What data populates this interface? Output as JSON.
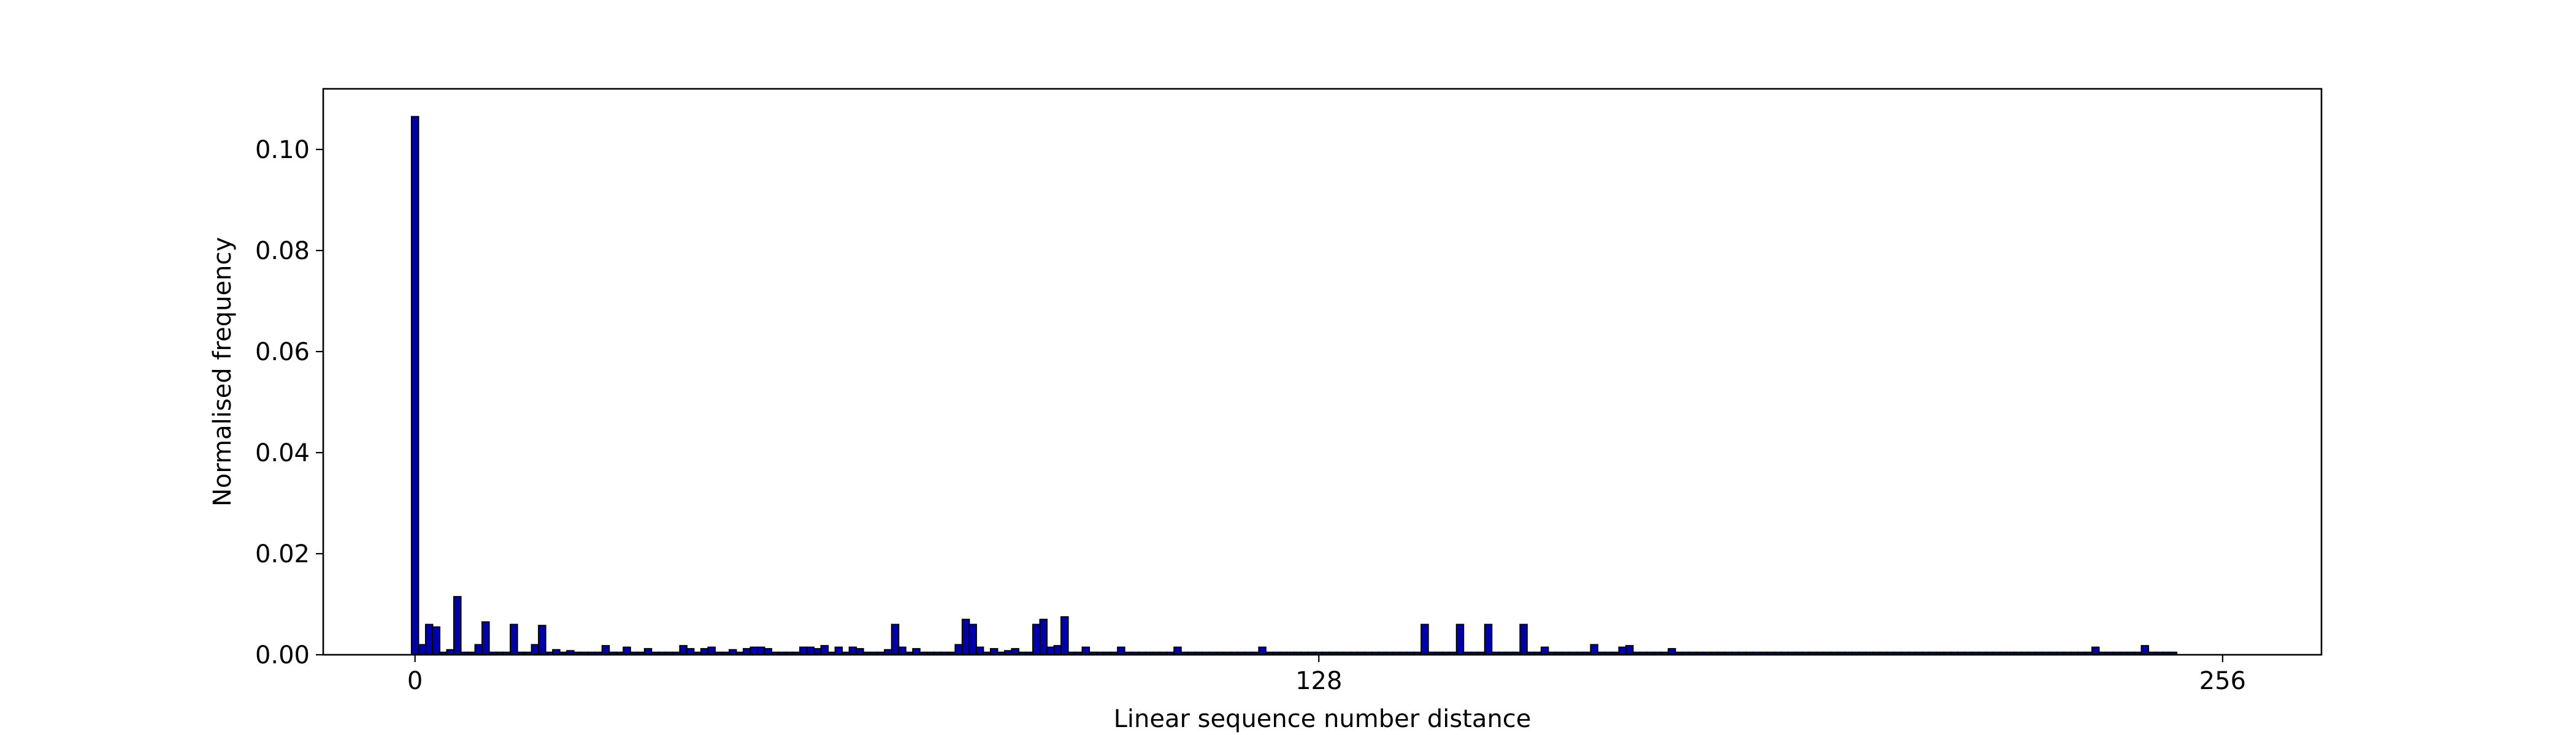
{
  "chart_data": {
    "type": "bar",
    "title": "",
    "xlabel": "Linear sequence number distance",
    "ylabel": "Normalised frequency",
    "xlim": [
      -13,
      270
    ],
    "ylim": [
      0,
      0.112
    ],
    "xticks": [
      0,
      128,
      256
    ],
    "xtick_labels": [
      "0",
      "128",
      "256"
    ],
    "yticks": [
      0,
      0.02,
      0.04,
      0.06,
      0.08,
      0.1
    ],
    "ytick_labels": [
      "0.00",
      "0.02",
      "0.04",
      "0.06",
      "0.08",
      "0.10"
    ],
    "grid": false,
    "bar_width": 1,
    "bar_color": "#0000aa",
    "edge_color": "#000000",
    "x": [
      0,
      1,
      2,
      3,
      5,
      6,
      9,
      10,
      14,
      17,
      18,
      20,
      22,
      27,
      30,
      33,
      38,
      39,
      41,
      42,
      45,
      47,
      48,
      49,
      50,
      55,
      56,
      57,
      58,
      60,
      62,
      63,
      67,
      68,
      69,
      71,
      77,
      78,
      79,
      80,
      82,
      84,
      85,
      88,
      89,
      90,
      91,
      92,
      95,
      100,
      108,
      120,
      143,
      148,
      152,
      157,
      160,
      167,
      171,
      172,
      178,
      238,
      245
    ],
    "values": [
      0.1065,
      0.002,
      0.006,
      0.0055,
      0.001,
      0.0115,
      0.002,
      0.0065,
      0.006,
      0.002,
      0.0058,
      0.001,
      0.0008,
      0.0018,
      0.0015,
      0.0012,
      0.0018,
      0.0012,
      0.0012,
      0.0015,
      0.001,
      0.0012,
      0.0015,
      0.0015,
      0.0012,
      0.0015,
      0.0015,
      0.0012,
      0.0018,
      0.0015,
      0.0015,
      0.0012,
      0.001,
      0.006,
      0.0015,
      0.0012,
      0.002,
      0.007,
      0.006,
      0.0015,
      0.0012,
      0.0008,
      0.0012,
      0.006,
      0.007,
      0.0015,
      0.0018,
      0.0075,
      0.0015,
      0.0015,
      0.0015,
      0.0015,
      0.006,
      0.006,
      0.006,
      0.006,
      0.0015,
      0.002,
      0.0015,
      0.0018,
      0.0012,
      0.0015,
      0.0018
    ],
    "noise_count": 250,
    "noise_level": 0.0005
  }
}
